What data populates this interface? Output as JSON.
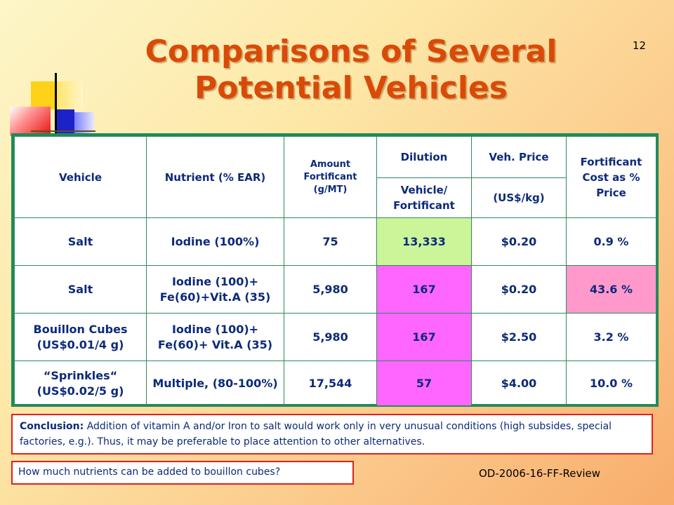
{
  "slide_number": "12",
  "title": "Comparisons of Several Potential Vehicles",
  "table": {
    "headers": {
      "vehicle": "Vehicle",
      "nutrient": "Nutrient (% EAR)",
      "amount": "Amount Fortificant (g/MT)",
      "dilution": "Dilution",
      "dilution_sub": "Vehicle/ Fortificant",
      "price": "Veh. Price",
      "price_sub": "(US$/kg)",
      "cost": "Fortificant Cost as % Price"
    },
    "rows": [
      {
        "vehicle": "Salt",
        "nutrient": "Iodine (100%)",
        "amount": "75",
        "dilution": "13,333",
        "price": "$0.20",
        "cost": "0.9 %"
      },
      {
        "vehicle": "Salt",
        "nutrient": "Iodine (100)+ Fe(60)+Vit.A (35)",
        "amount": "5,980",
        "dilution": "167",
        "price": "$0.20",
        "cost": "43.6 %"
      },
      {
        "vehicle": "Bouillon Cubes (US$0.01/4 g)",
        "nutrient": "Iodine (100)+ Fe(60)+ Vit.A (35)",
        "amount": "5,980",
        "dilution": "167",
        "price": "$2.50",
        "cost": "3.2 %"
      },
      {
        "vehicle": "“Sprinkles“ (US$0.02/5 g)",
        "nutrient": "Multiple, (80-100%)",
        "amount": "17,544",
        "dilution": "57",
        "price": "$4.00",
        "cost": "10.0 %"
      }
    ],
    "highlight_colors": {
      "green": "#ccf59a",
      "magenta": "#ff66ff",
      "pink": "#ff99cc"
    }
  },
  "conclusion": {
    "lead": "Conclusion:",
    "text": " Addition of vitamin A and/or Iron to salt would work only in very unusual conditions (high subsides, special factories, e.g.). Thus, it may be preferable to place attention to other alternatives."
  },
  "question": "How much nutrients can be added to bouillon cubes?",
  "reference": "OD-2006-16-FF-Review",
  "colors": {
    "title": "#d94a08",
    "table_border": "#1f8a5b",
    "text": "#0c2a7a",
    "box_border": "#e02020"
  }
}
